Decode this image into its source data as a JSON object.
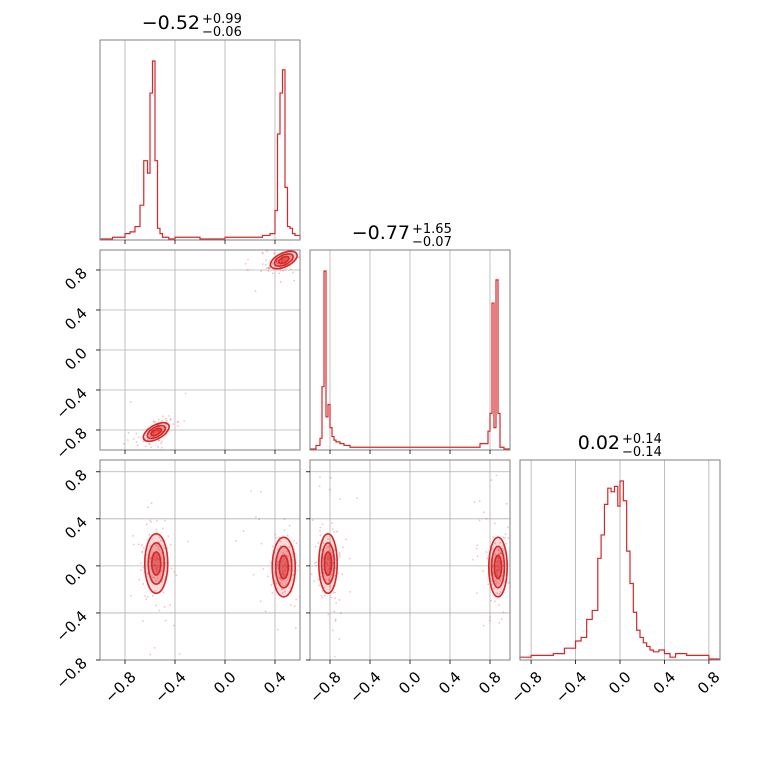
{
  "figure": {
    "type": "corner-plot",
    "color": "#d62728",
    "grid": true
  },
  "chart_data": [
    {
      "panel": "1-1",
      "type": "histogram",
      "title": {
        "main": "−0.52",
        "plus": "+0.99",
        "minus": "−0.06"
      },
      "xlim": [
        -1.0,
        0.6
      ],
      "x_ticks": [
        -0.8,
        -0.4,
        0.0,
        0.4
      ],
      "bin_edges": [
        -1.0,
        -0.9,
        -0.84,
        -0.8,
        -0.76,
        -0.72,
        -0.68,
        -0.65,
        -0.62,
        -0.6,
        -0.58,
        -0.56,
        -0.54,
        -0.52,
        -0.5,
        -0.48,
        -0.45,
        -0.4,
        -0.2,
        0.0,
        0.2,
        0.3,
        0.36,
        0.4,
        0.42,
        0.44,
        0.46,
        0.48,
        0.5,
        0.52,
        0.54,
        0.56,
        0.6
      ],
      "counts": [
        0,
        1,
        1,
        3,
        4,
        7,
        19,
        44,
        37,
        82,
        100,
        44,
        6,
        3,
        1,
        1,
        0,
        1,
        0,
        1,
        1,
        2,
        3,
        16,
        59,
        82,
        95,
        29,
        7,
        6,
        3,
        2
      ]
    },
    {
      "panel": "2-1",
      "type": "scatter-contour",
      "xlim": [
        -1.0,
        0.6
      ],
      "ylim": [
        -1.0,
        1.0
      ],
      "x_ticks": [
        -0.8,
        -0.4,
        0.0,
        0.4
      ],
      "y_ticks": [
        -0.8,
        -0.4,
        0.0,
        0.4,
        0.8
      ],
      "y_tick_labels": [
        "−0.8",
        "−0.4",
        "0.0",
        "0.4",
        "0.8"
      ],
      "clusters": [
        {
          "center": [
            -0.55,
            -0.82
          ],
          "angle": -30
        },
        {
          "center": [
            0.47,
            0.9
          ],
          "angle": -25
        }
      ]
    },
    {
      "panel": "2-2",
      "type": "histogram",
      "title": {
        "main": "−0.77",
        "plus": "+1.65",
        "minus": "−0.07"
      },
      "xlim": [
        -1.0,
        1.0
      ],
      "x_ticks": [
        -0.8,
        -0.4,
        0.0,
        0.4,
        0.8
      ],
      "bin_edges": [
        -1.0,
        -0.94,
        -0.9,
        -0.88,
        -0.86,
        -0.84,
        -0.82,
        -0.8,
        -0.78,
        -0.76,
        -0.74,
        -0.7,
        -0.66,
        -0.6,
        -0.5,
        -0.4,
        -0.2,
        0.0,
        0.4,
        0.7,
        0.78,
        0.8,
        0.82,
        0.84,
        0.86,
        0.88,
        0.9,
        0.94,
        1.0
      ],
      "counts": [
        0,
        2,
        6,
        35,
        100,
        18,
        25,
        12,
        7,
        5,
        4,
        3,
        2,
        1,
        1,
        1,
        1,
        1,
        1,
        3,
        10,
        20,
        82,
        12,
        95,
        20,
        1,
        0
      ]
    },
    {
      "panel": "3-1",
      "type": "scatter-contour",
      "xlim": [
        -1.0,
        0.6
      ],
      "ylim": [
        -0.8,
        0.9
      ],
      "x_ticks": [
        -0.8,
        -0.4,
        0.0,
        0.4
      ],
      "x_tick_labels": [
        "−0.8",
        "−0.4",
        "0.0",
        "0.4"
      ],
      "y_ticks": [
        -0.8,
        -0.4,
        0.0,
        0.4,
        0.8
      ],
      "y_tick_labels": [
        "−0.8",
        "−0.4",
        "0.0",
        "0.4",
        "0.8"
      ],
      "clusters": [
        {
          "center": [
            -0.55,
            0.02
          ],
          "angle": 0
        },
        {
          "center": [
            0.47,
            -0.01
          ],
          "angle": 0
        }
      ]
    },
    {
      "panel": "3-2",
      "type": "scatter-contour",
      "xlim": [
        -1.0,
        1.0
      ],
      "ylim": [
        -0.8,
        0.9
      ],
      "x_ticks": [
        -0.8,
        -0.4,
        0.0,
        0.4,
        0.8
      ],
      "x_tick_labels": [
        "−0.8",
        "−0.4",
        "0.0",
        "0.4",
        "0.8"
      ],
      "y_ticks": [
        -0.8,
        -0.4,
        0.0,
        0.4,
        0.8
      ],
      "clusters": [
        {
          "center": [
            -0.82,
            0.02
          ],
          "angle": 0
        },
        {
          "center": [
            0.88,
            -0.01
          ],
          "angle": 0
        }
      ]
    },
    {
      "panel": "3-3",
      "type": "histogram",
      "title": {
        "main": "0.02",
        "plus": "+0.14",
        "minus": "−0.14"
      },
      "xlim": [
        -0.9,
        0.9
      ],
      "x_ticks": [
        -0.8,
        -0.4,
        0.0,
        0.4,
        0.8
      ],
      "x_tick_labels": [
        "−0.8",
        "−0.4",
        "0.0",
        "0.4",
        "0.8"
      ],
      "bin_edges": [
        -0.9,
        -0.8,
        -0.6,
        -0.5,
        -0.45,
        -0.4,
        -0.35,
        -0.3,
        -0.25,
        -0.2,
        -0.17,
        -0.14,
        -0.11,
        -0.08,
        -0.05,
        -0.02,
        0.0,
        0.03,
        0.06,
        0.09,
        0.12,
        0.15,
        0.18,
        0.21,
        0.24,
        0.27,
        0.3,
        0.35,
        0.4,
        0.45,
        0.5,
        0.6,
        0.7,
        0.8,
        0.9
      ],
      "counts": [
        1,
        2,
        3,
        6,
        6,
        10,
        12,
        22,
        27,
        56,
        69,
        86,
        95,
        93,
        96,
        85,
        99,
        88,
        60,
        42,
        26,
        16,
        12,
        9,
        7,
        5,
        4,
        5,
        3,
        1,
        3,
        2,
        2,
        0
      ]
    }
  ]
}
